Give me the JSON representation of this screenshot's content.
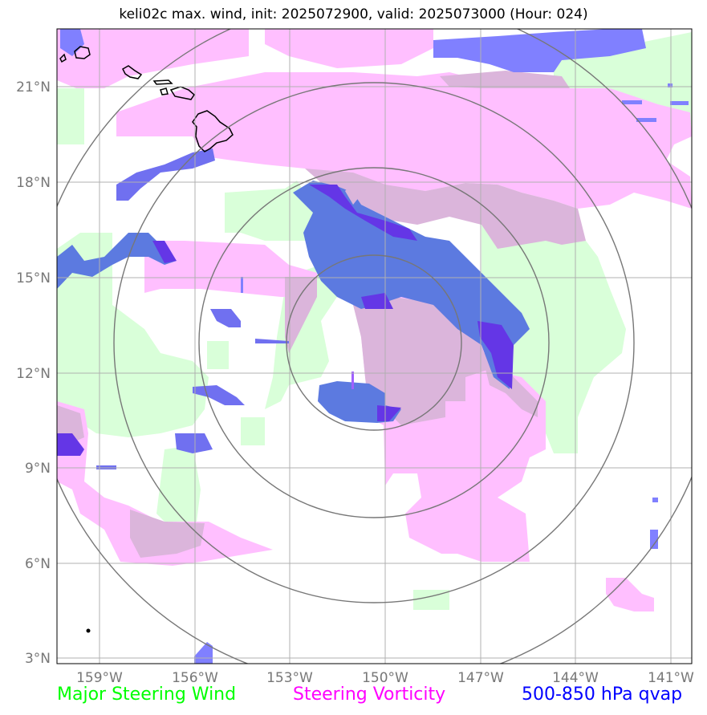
{
  "title": "keli02c max. wind, init: 2025072900, valid: 2025073000 (Hour: 024)",
  "lat_ticks": [
    "21°N",
    "18°N",
    "15°N",
    "12°N",
    "9°N",
    "6°N",
    "3°N"
  ],
  "lon_ticks": [
    "159°W",
    "156°W",
    "153°W",
    "150°W",
    "147°W",
    "144°W",
    "141°W"
  ],
  "legend": [
    {
      "label": "Major Steering Wind",
      "color": "#00ff00"
    },
    {
      "label": "Steering Vorticity",
      "color": "#ff00ff"
    },
    {
      "label": "500-850 hPa qvap",
      "color": "#0000ff"
    }
  ],
  "colors": {
    "wind_fill": "#d9ffd9",
    "vorticity_fill": "#ffbfff",
    "overlap_fill": "#dbb5db",
    "qvap_fill": "#5c7ae0",
    "qvap_light": "#8080ff",
    "qvap_dark": "#6436e6",
    "range_ring": "#777777",
    "grid": "#b0b0b0",
    "coastline": "#000000"
  }
}
